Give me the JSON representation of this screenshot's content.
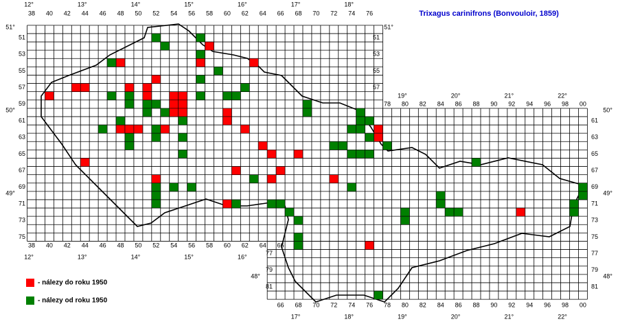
{
  "title": "Trixagus carinifrons (Bonvouloir, 1859)",
  "col_labels": {
    "top": [
      38,
      40,
      42,
      44,
      46,
      48,
      50,
      52,
      54,
      56,
      58,
      60,
      62,
      64,
      66,
      68,
      70,
      72,
      74,
      76
    ],
    "top_east": [
      78,
      80,
      82,
      84,
      86,
      88,
      90,
      92,
      94,
      96,
      98,
      {
        "value": 100,
        "label": "00"
      }
    ],
    "bottom": [
      38,
      40,
      42,
      44,
      46,
      48,
      50,
      52,
      54,
      56,
      58,
      60,
      62,
      64,
      66
    ],
    "bottom_east": [
      66,
      68,
      70,
      72,
      74,
      76,
      78,
      80,
      82,
      84,
      86,
      88,
      90,
      92,
      94,
      96,
      98,
      {
        "value": 100,
        "label": "00"
      }
    ]
  },
  "row_labels": {
    "left": [
      51,
      53,
      55,
      57,
      59,
      61,
      63,
      65,
      67,
      69,
      71,
      73,
      75
    ],
    "left_lower": [
      77,
      79,
      81
    ],
    "right": [
      51,
      53,
      55,
      57
    ],
    "right_east": [
      61,
      63,
      65,
      67,
      69,
      71,
      73,
      75,
      77,
      79,
      81
    ]
  },
  "longitude_labels": {
    "top": [
      {
        "value": 12,
        "label": "12°"
      },
      {
        "value": 13,
        "label": "13°"
      },
      {
        "value": 14,
        "label": "14°"
      },
      {
        "value": 15,
        "label": "15°"
      },
      {
        "value": 16,
        "label": "16°"
      },
      {
        "value": 17,
        "label": "17°"
      },
      {
        "value": 18,
        "label": "18°"
      }
    ],
    "top_east": [
      {
        "value": 19,
        "label": "19°"
      },
      {
        "value": 20,
        "label": "20°"
      },
      {
        "value": 21,
        "label": "21°"
      },
      {
        "value": 22,
        "label": "22°"
      }
    ],
    "bottom": [
      {
        "value": 12,
        "label": "12°"
      },
      {
        "value": 13,
        "label": "13°"
      },
      {
        "value": 14,
        "label": "14°"
      },
      {
        "value": 15,
        "label": "15°"
      },
      {
        "value": 16,
        "label": "16°"
      }
    ],
    "bottom_east": [
      {
        "value": 17,
        "label": "17°"
      },
      {
        "value": 18,
        "label": "18°"
      },
      {
        "value": 19,
        "label": "19°"
      },
      {
        "value": 20,
        "label": "20°"
      },
      {
        "value": 21,
        "label": "21°"
      },
      {
        "value": 22,
        "label": "22°"
      }
    ]
  },
  "latitude_labels": {
    "left": [
      {
        "value": 51,
        "label": "51°"
      },
      {
        "value": 50,
        "label": "50°"
      },
      {
        "value": 49,
        "label": "49°"
      }
    ],
    "left_lower": [
      {
        "value": 48,
        "label": "48°"
      }
    ],
    "right": [
      {
        "value": 51,
        "label": "51°"
      }
    ],
    "right_east": [
      {
        "value": 50,
        "label": "50°"
      },
      {
        "value": 49,
        "label": "49°"
      },
      {
        "value": 48,
        "label": "48°"
      }
    ]
  },
  "legend": [
    {
      "label": "- nálezy do roku 1950",
      "color": "#ff0000",
      "squares": [
        [
          58,
          52
        ],
        [
          48,
          54
        ],
        [
          57,
          54
        ],
        [
          63,
          54
        ],
        [
          52,
          56
        ],
        [
          43,
          57
        ],
        [
          44,
          57
        ],
        [
          40,
          58
        ],
        [
          49,
          57
        ],
        [
          51,
          57
        ],
        [
          51,
          58
        ],
        [
          54,
          58
        ],
        [
          55,
          58
        ],
        [
          54,
          59
        ],
        [
          55,
          59
        ],
        [
          54,
          60
        ],
        [
          55,
          60
        ],
        [
          60,
          60
        ],
        [
          60,
          61
        ],
        [
          48,
          62
        ],
        [
          49,
          62
        ],
        [
          50,
          62
        ],
        [
          53,
          62
        ],
        [
          62,
          62
        ],
        [
          64,
          64
        ],
        [
          65,
          65
        ],
        [
          68,
          65
        ],
        [
          44,
          66
        ],
        [
          61,
          67
        ],
        [
          66,
          67
        ],
        [
          65,
          68
        ],
        [
          52,
          68
        ],
        [
          72,
          68
        ],
        [
          77,
          62
        ],
        [
          77,
          63
        ],
        [
          60,
          71
        ],
        [
          93,
          72
        ],
        [
          76,
          76
        ]
      ]
    },
    {
      "label": "- nálezy od roku 1950",
      "color": "#008000",
      "squares": [
        [
          52,
          51
        ],
        [
          53,
          52
        ],
        [
          57,
          51
        ],
        [
          47,
          54
        ],
        [
          57,
          53
        ],
        [
          59,
          55
        ],
        [
          57,
          56
        ],
        [
          47,
          58
        ],
        [
          49,
          58
        ],
        [
          57,
          58
        ],
        [
          60,
          58
        ],
        [
          61,
          58
        ],
        [
          62,
          57
        ],
        [
          49,
          59
        ],
        [
          51,
          59
        ],
        [
          52,
          59
        ],
        [
          69,
          59
        ],
        [
          69,
          60
        ],
        [
          51,
          60
        ],
        [
          53,
          60
        ],
        [
          48,
          61
        ],
        [
          55,
          61
        ],
        [
          46,
          62
        ],
        [
          52,
          62
        ],
        [
          52,
          63
        ],
        [
          49,
          63
        ],
        [
          55,
          63
        ],
        [
          49,
          64
        ],
        [
          55,
          65
        ],
        [
          63,
          68
        ],
        [
          52,
          69
        ],
        [
          52,
          70
        ],
        [
          52,
          71
        ],
        [
          54,
          69
        ],
        [
          56,
          69
        ],
        [
          74,
          69
        ],
        [
          75,
          60
        ],
        [
          75,
          61
        ],
        [
          76,
          61
        ],
        [
          74,
          62
        ],
        [
          75,
          62
        ],
        [
          76,
          63
        ],
        [
          72,
          64
        ],
        [
          73,
          64
        ],
        [
          74,
          65
        ],
        [
          75,
          65
        ],
        [
          76,
          65
        ],
        [
          78,
          64
        ],
        [
          61,
          71
        ],
        [
          65,
          71
        ],
        [
          66,
          71
        ],
        [
          67,
          72
        ],
        [
          68,
          73
        ],
        [
          68,
          75
        ],
        [
          68,
          76
        ],
        [
          84,
          70
        ],
        [
          84,
          71
        ],
        [
          85,
          72
        ],
        [
          86,
          72
        ],
        [
          88,
          66
        ],
        [
          80,
          72
        ],
        [
          80,
          73
        ],
        [
          99,
          71
        ],
        [
          99,
          72
        ],
        [
          100,
          70
        ],
        [
          100,
          69
        ],
        [
          77,
          82
        ]
      ]
    }
  ]
}
